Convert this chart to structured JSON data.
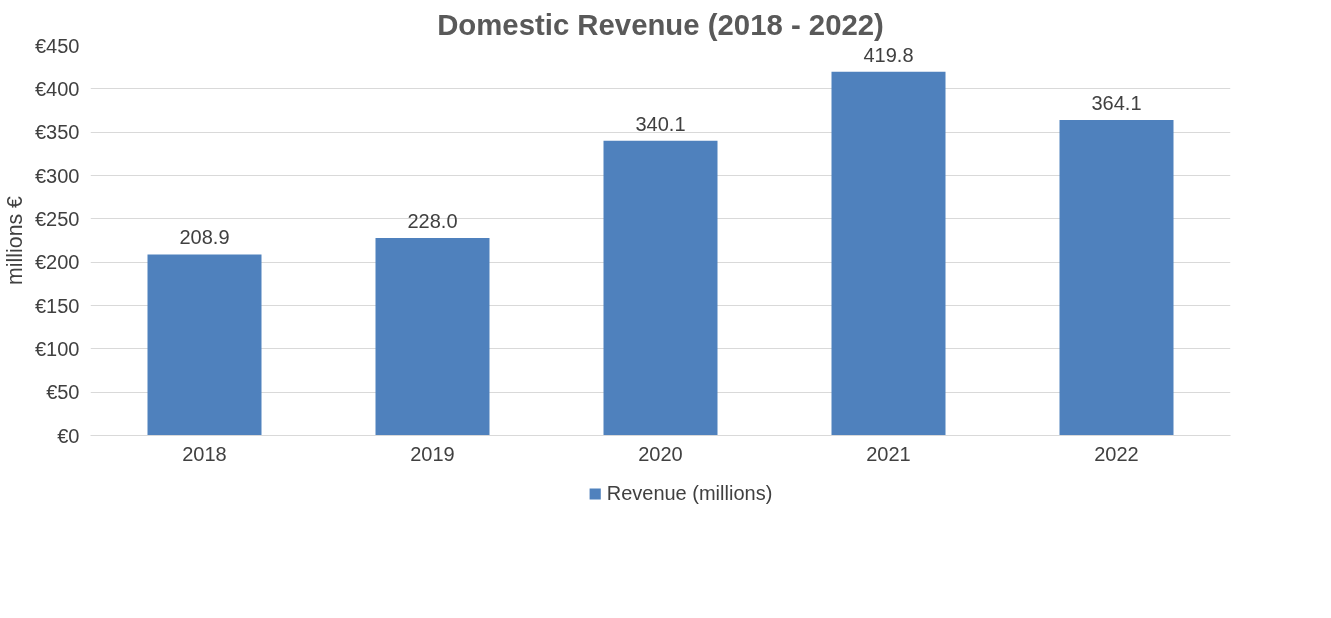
{
  "chart_data": {
    "type": "bar",
    "title": "Domestic Revenue (2018 - 2022)",
    "ylabel": "millions €",
    "categories": [
      "2018",
      "2019",
      "2020",
      "2021",
      "2022"
    ],
    "series": [
      {
        "name": "Revenue (millions)",
        "color": "#4f81bd",
        "values": [
          208.9,
          228,
          340.1,
          419.8,
          364.1
        ],
        "value_labels": [
          "208.9",
          "228.0",
          "340.1",
          "419.8",
          "364.1"
        ]
      }
    ],
    "ylim": [
      0,
      450
    ],
    "yticks": [
      {
        "value": 0,
        "label": "€0"
      },
      {
        "value": 50,
        "label": "€50"
      },
      {
        "value": 100,
        "label": "€100"
      },
      {
        "value": 150,
        "label": "€150"
      },
      {
        "value": 200,
        "label": "€200"
      },
      {
        "value": 250,
        "label": "€250"
      },
      {
        "value": 300,
        "label": "€300"
      },
      {
        "value": 350,
        "label": "€350"
      },
      {
        "value": 400,
        "label": "€400"
      },
      {
        "value": 450,
        "label": "€450"
      }
    ],
    "grid": "y",
    "legend": "bottom"
  }
}
